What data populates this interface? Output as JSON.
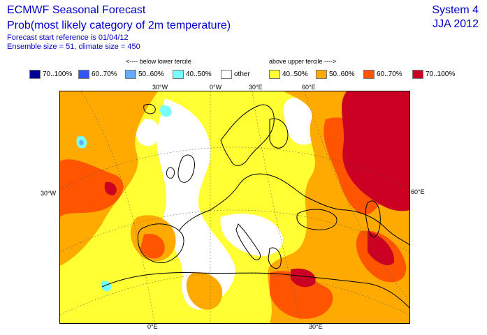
{
  "header": {
    "title": "ECMWF Seasonal Forecast",
    "subtitle": "Prob(most likely category of 2m temperature)",
    "start_ref": "Forecast start reference is 01/04/12",
    "ensemble": "Ensemble size = 51, climate size = 450",
    "system": "System 4",
    "period": "JJA 2012"
  },
  "legend": {
    "below_hint": "<---- below lower tercile",
    "above_hint": "above upper tercile ---->",
    "items": [
      {
        "label": "70..100%",
        "color": "#000099"
      },
      {
        "label": "60..70%",
        "color": "#3355ff"
      },
      {
        "label": "50..60%",
        "color": "#66aaff"
      },
      {
        "label": "40..50%",
        "color": "#77ffff"
      },
      {
        "label": "other",
        "color": "#ffffff"
      },
      {
        "label": "40..50%",
        "color": "#ffff33"
      },
      {
        "label": "50..60%",
        "color": "#ffaa00"
      },
      {
        "label": "60..70%",
        "color": "#ff5500"
      },
      {
        "label": "70..100%",
        "color": "#cc0022"
      }
    ]
  },
  "grid_labels": {
    "top": [
      "30°W",
      "0°W",
      "30°E",
      "60°E"
    ],
    "left": "30°W",
    "right": "60°E",
    "bottom": [
      "0°E",
      "30°E"
    ]
  }
}
